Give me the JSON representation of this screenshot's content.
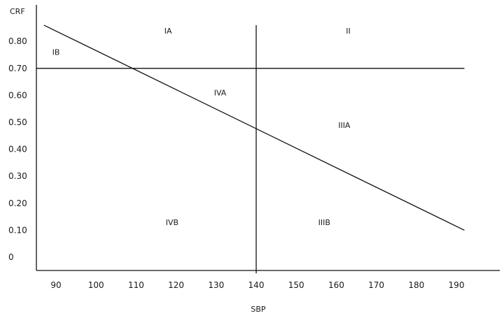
{
  "chart_data": {
    "type": "line",
    "title": "",
    "xlabel": "SBP",
    "ylabel": "CRF",
    "xlim": [
      85,
      200
    ],
    "ylim": [
      -0.06,
      0.92
    ],
    "x_ticks": [
      90,
      100,
      110,
      120,
      130,
      140,
      150,
      160,
      170,
      180,
      190
    ],
    "y_ticks": [
      {
        "value": 0.8,
        "label": "0.80"
      },
      {
        "value": 0.7,
        "label": "0.70"
      },
      {
        "value": 0.6,
        "label": "0.60"
      },
      {
        "value": 0.5,
        "label": "0.50"
      },
      {
        "value": 0.4,
        "label": "0.40"
      },
      {
        "value": 0.3,
        "label": "0.30"
      },
      {
        "value": 0.2,
        "label": "0.20"
      },
      {
        "value": 0.1,
        "label": "0.10"
      },
      {
        "value": 0.0,
        "label": "0"
      }
    ],
    "series": [
      {
        "x": [
          87,
          192
        ],
        "y": [
          0.86,
          0.1
        ]
      }
    ],
    "horizontal_line": {
      "y": 0.7,
      "x_range": [
        85,
        192
      ]
    },
    "vertical_line": {
      "x": 140,
      "y_range": [
        -0.06,
        0.86
      ]
    },
    "regions": [
      {
        "label": "IA",
        "x": 118,
        "y": 0.84
      },
      {
        "label": "II",
        "x": 163,
        "y": 0.84
      },
      {
        "label": "IB",
        "x": 90,
        "y": 0.76
      },
      {
        "label": "IVA",
        "x": 131,
        "y": 0.61
      },
      {
        "label": "IIIA",
        "x": 162,
        "y": 0.49
      },
      {
        "label": "IVB",
        "x": 119,
        "y": 0.13
      },
      {
        "label": "IIIB",
        "x": 157,
        "y": 0.13
      }
    ],
    "grid": false,
    "legend": "none"
  }
}
